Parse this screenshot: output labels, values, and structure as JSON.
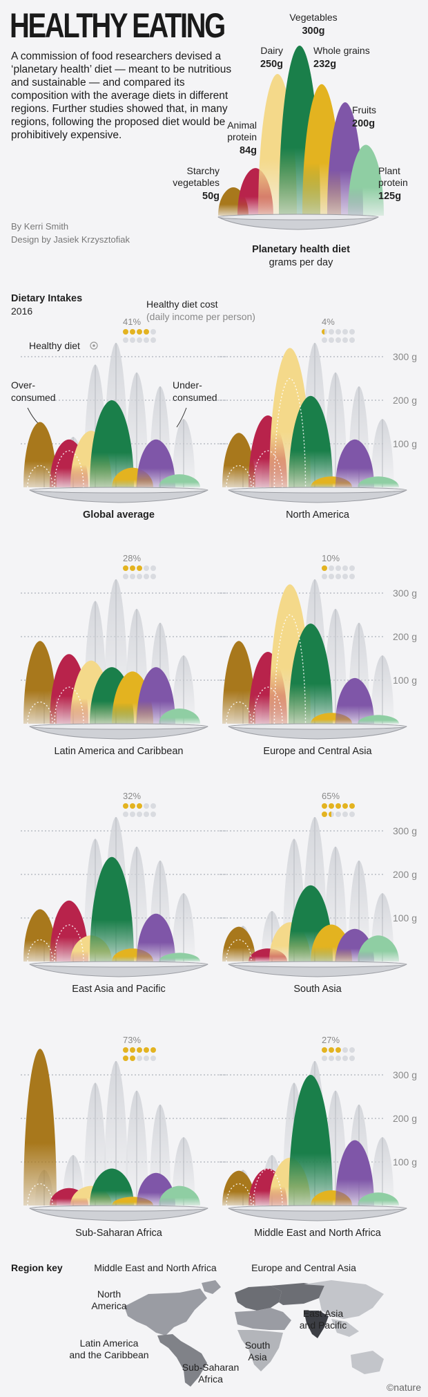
{
  "header": {
    "title": "HEALTHY EATING",
    "intro": "A commission of food researchers devised a ‘planetary health’ diet — meant to be nutritious and sustainable — and compared its composition with the average diets in different regions. Further studies showed that, in many regions, following the proposed diet would be prohibitively expensive.",
    "credit_author": "By Kerri Smith",
    "credit_design": "Design by Jasiek Krzysztofiak"
  },
  "colors": {
    "starchy": "#a8781c",
    "animal": "#b8234b",
    "dairy": "#f4d98a",
    "vegetables": "#1a7f4a",
    "whole_grains": "#e3b320",
    "fruits": "#7f56a8",
    "plant_protein": "#8fcea3",
    "ghost": "#d3d5da",
    "dot_filled": "#e3b320",
    "dot_empty": "#d9dbe0"
  },
  "chart_data": {
    "type": "area",
    "categories": [
      "Starchy vegetables",
      "Animal protein",
      "Dairy",
      "Vegetables",
      "Whole grains",
      "Fruits",
      "Plant protein"
    ],
    "planetary": {
      "title": "Planetary health diet",
      "subtitle": "grams per day",
      "labels": [
        {
          "name": "Starchy vegetables",
          "value": "50g"
        },
        {
          "name": "Animal protein",
          "value": "84g"
        },
        {
          "name": "Dairy",
          "value": "250g"
        },
        {
          "name": "Vegetables",
          "value": "300g"
        },
        {
          "name": "Whole grains",
          "value": "232g"
        },
        {
          "name": "Fruits",
          "value": "200g"
        },
        {
          "name": "Plant protein",
          "value": "125g"
        }
      ],
      "values": [
        50,
        84,
        250,
        300,
        232,
        200,
        125
      ]
    },
    "section_title": "Dietary Intakes",
    "section_year": "2016",
    "cost_label_1": "Healthy diet cost",
    "cost_label_2": "(daily income per person)",
    "healthy_diet_label": "Healthy diet",
    "overconsumed_label": "Over-\nconsumed",
    "underconsumed_label": "Under-\nconsumed",
    "y_ticks": [
      "300 g",
      "200 g",
      "100 g"
    ],
    "ylim": [
      0,
      300
    ],
    "regions": [
      {
        "name": "Global average",
        "cost": "41%",
        "dots": 4,
        "values": [
          150,
          110,
          130,
          200,
          45,
          110,
          30
        ]
      },
      {
        "name": "North America",
        "cost": "4%",
        "dots": 0.5,
        "values": [
          125,
          165,
          320,
          210,
          25,
          110,
          25
        ]
      },
      {
        "name": "Latin America and Caribbean",
        "cost": "28%",
        "dots": 3,
        "values": [
          190,
          160,
          145,
          130,
          120,
          130,
          35
        ]
      },
      {
        "name": "Europe and Central Asia",
        "cost": "10%",
        "dots": 1,
        "values": [
          190,
          165,
          320,
          230,
          25,
          105,
          20
        ]
      },
      {
        "name": "East Asia and Pacific",
        "cost": "32%",
        "dots": 3,
        "values": [
          120,
          140,
          60,
          240,
          30,
          110,
          20
        ]
      },
      {
        "name": "South Asia",
        "cost": "65%",
        "dots": 6.5,
        "values": [
          80,
          30,
          90,
          175,
          85,
          75,
          60
        ]
      },
      {
        "name": "Sub-Saharan Africa",
        "cost": "73%",
        "dots": 7,
        "values": [
          360,
          40,
          45,
          85,
          20,
          75,
          45
        ]
      },
      {
        "name": "Middle East and North Africa",
        "cost": "27%",
        "dots": 3,
        "values": [
          80,
          85,
          110,
          300,
          35,
          150,
          30
        ]
      }
    ]
  },
  "map": {
    "title": "Region key",
    "labels": {
      "mena": "Middle East and North Africa",
      "eca": "Europe and Central Asia",
      "na": "North\nAmerica",
      "eap": "East Asia\nand Pacific",
      "lac": "Latin America\nand the Caribbean",
      "sa": "South\nAsia",
      "ssa": "Sub-Saharan\nAfrica"
    }
  },
  "footer": {
    "brand": "©nature"
  }
}
